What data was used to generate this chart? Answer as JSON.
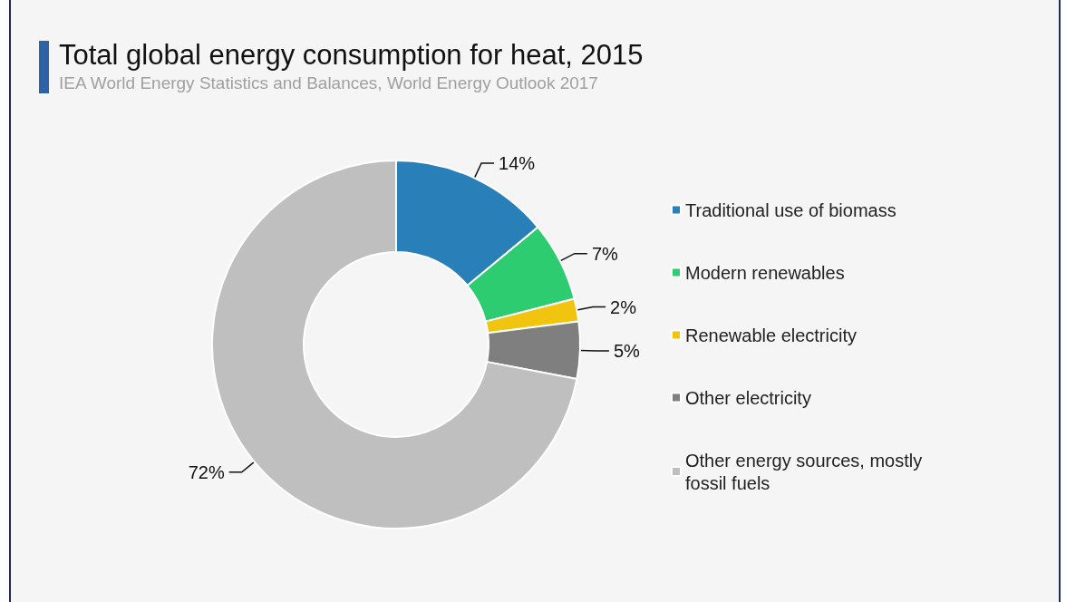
{
  "chart_data": {
    "type": "donut",
    "title": "Total global energy consumption for heat, 2015",
    "subtitle": "IEA World Energy Statistics and Balances, World Energy Outlook 2017",
    "categories": [
      "Traditional use of biomass",
      "Modern renewables",
      "Renewable electricity",
      "Other electricity",
      "Other energy sources, mostly fossil fuels"
    ],
    "values": [
      14,
      7,
      2,
      5,
      72
    ],
    "colors": [
      "#2980b9",
      "#2ecc71",
      "#f1c40f",
      "#7f7f7f",
      "#bfbfbf"
    ],
    "value_labels": [
      "14%",
      "7%",
      "2%",
      "5%",
      "72%"
    ],
    "legend": "right"
  }
}
